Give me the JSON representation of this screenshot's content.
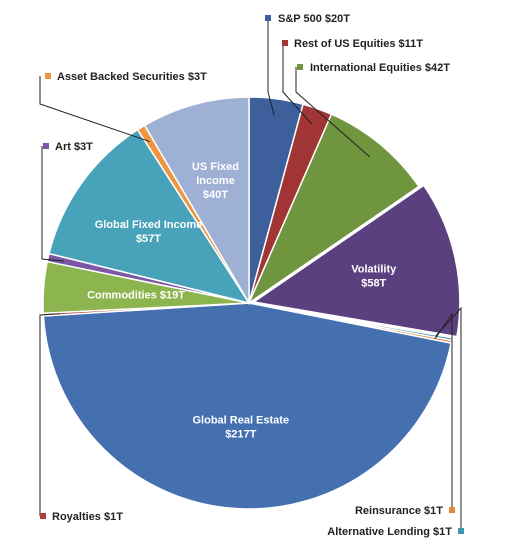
{
  "chart_data": {
    "type": "pie",
    "unit": "T",
    "slices": [
      {
        "name": "S&P 500",
        "value": 20,
        "label": "S&P 500 $20T",
        "color": "#3d5f9c"
      },
      {
        "name": "Rest of US Equities",
        "value": 11,
        "label": "Rest of US Equities $11T",
        "color": "#a13535"
      },
      {
        "name": "International Equities",
        "value": 42,
        "label": "International Equities $42T",
        "color": "#6f963e"
      },
      {
        "name": "Volatility",
        "value": 58,
        "label": "Volatility",
        "value_label": "$58T",
        "color": "#5b407f"
      },
      {
        "name": "Alternative Lending",
        "value": 1,
        "label": "Alternative Lending $1T",
        "color": "#3e98ad"
      },
      {
        "name": "Reinsurance",
        "value": 1,
        "label": "Reinsurance $1T",
        "color": "#df8a3a"
      },
      {
        "name": "Global Real Estate",
        "value": 217,
        "label": "Global Real Estate",
        "value_label": "$217T",
        "color": "#4570b0"
      },
      {
        "name": "Royalties",
        "value": 1,
        "label": "Royalties $1T",
        "color": "#b33d3d"
      },
      {
        "name": "Commodities",
        "value": 19,
        "label": "Commodities $19T",
        "color": "#8db54f"
      },
      {
        "name": "Art",
        "value": 3,
        "label": "Art $3T",
        "color": "#7a58a6"
      },
      {
        "name": "Global Fixed Income",
        "value": 57,
        "label": "Global Fixed Income",
        "value_label": "$57T",
        "color": "#47a2ba"
      },
      {
        "name": "Asset Backed Securities",
        "value": 3,
        "label": "Asset Backed Securities $3T",
        "color": "#ee9540"
      },
      {
        "name": "US Fixed Income",
        "value": 40,
        "label": "US Fixed Income",
        "value_label": "$40T",
        "color": "#9eb0d4"
      }
    ]
  }
}
